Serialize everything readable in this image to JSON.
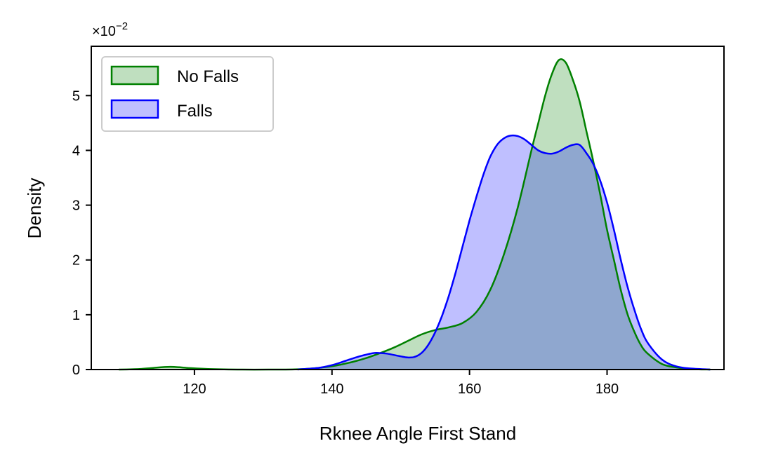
{
  "chart_data": {
    "type": "area",
    "xlabel": "Rknee Angle First Stand",
    "ylabel": "Density",
    "y_multiplier": "×10",
    "y_multiplier_exp": "−2",
    "xlim": [
      105,
      197
    ],
    "ylim": [
      0,
      5.9
    ],
    "xticks": [
      120,
      140,
      160,
      180
    ],
    "yticks": [
      0,
      1,
      2,
      3,
      4,
      5
    ],
    "grid": false,
    "legend_position": "top-left",
    "series": [
      {
        "name": "No Falls",
        "color": "#008000",
        "fill": "#bfdfbf",
        "x": [
          109,
          112,
          114,
          116.5,
          119,
          122,
          127,
          132,
          136,
          140,
          143,
          145,
          147,
          149,
          151,
          153,
          155,
          157,
          159,
          161,
          163,
          165,
          167,
          169,
          170,
          171,
          172,
          173,
          174,
          175,
          176,
          177,
          178,
          179,
          180,
          181,
          182,
          183,
          184,
          185,
          186,
          188,
          190,
          192,
          195
        ],
        "y": [
          0.0,
          0.01,
          0.03,
          0.05,
          0.03,
          0.01,
          0.0,
          0.0,
          0.01,
          0.06,
          0.14,
          0.21,
          0.3,
          0.4,
          0.52,
          0.64,
          0.72,
          0.77,
          0.85,
          1.05,
          1.45,
          2.1,
          2.95,
          4.0,
          4.5,
          5.0,
          5.4,
          5.65,
          5.6,
          5.3,
          4.9,
          4.35,
          3.8,
          3.2,
          2.55,
          2.0,
          1.45,
          1.0,
          0.68,
          0.43,
          0.28,
          0.1,
          0.04,
          0.01,
          0.0
        ]
      },
      {
        "name": "Falls",
        "color": "#0000ff",
        "fill": "#bfbfff",
        "x": [
          135,
          138,
          140,
          142,
          144,
          146,
          147,
          148,
          150,
          151,
          152,
          153,
          154,
          155,
          156,
          157,
          158,
          159,
          160,
          161,
          162,
          163,
          164,
          165,
          166,
          167,
          168,
          169,
          170,
          171,
          172,
          173,
          174,
          175,
          176,
          177,
          178,
          179,
          180,
          181,
          182,
          183,
          184,
          185,
          186,
          188,
          190,
          192,
          195
        ],
        "y": [
          0.0,
          0.03,
          0.08,
          0.16,
          0.24,
          0.3,
          0.3,
          0.29,
          0.24,
          0.22,
          0.23,
          0.3,
          0.45,
          0.68,
          0.98,
          1.35,
          1.78,
          2.25,
          2.72,
          3.15,
          3.55,
          3.88,
          4.1,
          4.22,
          4.27,
          4.26,
          4.2,
          4.1,
          4.0,
          3.95,
          3.94,
          3.98,
          4.05,
          4.1,
          4.1,
          3.95,
          3.75,
          3.45,
          3.05,
          2.55,
          2.0,
          1.5,
          1.08,
          0.72,
          0.47,
          0.18,
          0.06,
          0.02,
          0.0
        ]
      }
    ]
  }
}
